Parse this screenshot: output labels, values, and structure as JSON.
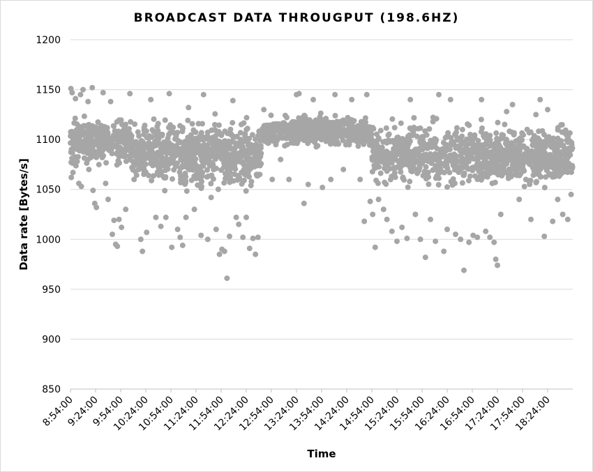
{
  "chart_data": {
    "type": "scatter",
    "title": "BROADCAST DATA THROUGPUT (198.6HZ)",
    "xlabel": "Time",
    "ylabel": "Data rate [Bytes/s]",
    "ylim": [
      850,
      1200
    ],
    "yticks": [
      850,
      900,
      950,
      1000,
      1050,
      1100,
      1150,
      1200
    ],
    "x_range": [
      "8:54:00",
      "18:54:00"
    ],
    "xtick_labels": [
      "8:54:00",
      "9:24:00",
      "9:54:00",
      "10:24:00",
      "10:54:00",
      "11:24:00",
      "11:54:00",
      "12:24:00",
      "12:54:00",
      "13:24:00",
      "13:54:00",
      "14:24:00",
      "14:54:00",
      "15:24:00",
      "15:54:00",
      "16:24:00",
      "16:54:00",
      "17:24:00",
      "17:54:00",
      "18:24:00"
    ],
    "grid": true,
    "legend": "none",
    "marker_color": "#a6a6a6",
    "series": [
      {
        "description_points_note": "",
        "points": [
          [
            "8:54:30",
            1151
          ],
          [
            "8:56:00",
            1147
          ],
          [
            "9:00:00",
            1141
          ],
          [
            "9:06:00",
            1145
          ],
          [
            "9:09:00",
            1150
          ],
          [
            "9:15:00",
            1138
          ],
          [
            "9:20:00",
            1152
          ],
          [
            "9:33:00",
            1147
          ],
          [
            "9:42:00",
            1138
          ],
          [
            "8:55:00",
            1062
          ],
          [
            "8:57:00",
            1067
          ],
          [
            "9:02:00",
            1078
          ],
          [
            "9:04:00",
            1056
          ],
          [
            "9:07:00",
            1053
          ],
          [
            "9:12:00",
            1088
          ],
          [
            "9:16:00",
            1070
          ],
          [
            "9:21:00",
            1049
          ],
          [
            "9:23:00",
            1036
          ],
          [
            "9:25:00",
            1032
          ],
          [
            "9:36:00",
            1056
          ],
          [
            "9:39:00",
            1040
          ],
          [
            "9:44:00",
            1005
          ],
          [
            "9:46:00",
            1019
          ],
          [
            "9:48:00",
            995
          ],
          [
            "9:50:00",
            993
          ],
          [
            "9:52:00",
            1020
          ],
          [
            "9:55:00",
            1012
          ],
          [
            "10:00:00",
            1030
          ],
          [
            "10:05:00",
            1146
          ],
          [
            "10:10:00",
            1060
          ],
          [
            "10:18:00",
            1000
          ],
          [
            "10:20:00",
            988
          ],
          [
            "10:25:00",
            1007
          ],
          [
            "10:30:00",
            1140
          ],
          [
            "10:36:00",
            1022
          ],
          [
            "10:42:00",
            1013
          ],
          [
            "10:48:00",
            1022
          ],
          [
            "10:52:00",
            1146
          ],
          [
            "10:55:00",
            992
          ],
          [
            "11:02:00",
            1010
          ],
          [
            "11:05:00",
            1002
          ],
          [
            "11:08:00",
            994
          ],
          [
            "11:12:00",
            1022
          ],
          [
            "11:15:00",
            1132
          ],
          [
            "11:22:00",
            1030
          ],
          [
            "11:30:00",
            1004
          ],
          [
            "11:33:00",
            1145
          ],
          [
            "11:38:00",
            1000
          ],
          [
            "11:42:00",
            1042
          ],
          [
            "11:48:00",
            1010
          ],
          [
            "11:52:00",
            985
          ],
          [
            "11:55:00",
            990
          ],
          [
            "11:58:00",
            988
          ],
          [
            "12:01:00",
            961
          ],
          [
            "12:04:00",
            1003
          ],
          [
            "12:08:00",
            1139
          ],
          [
            "12:12:00",
            1022
          ],
          [
            "12:15:00",
            1015
          ],
          [
            "12:20:00",
            1002
          ],
          [
            "12:24:00",
            1022
          ],
          [
            "12:28:00",
            991
          ],
          [
            "12:32:00",
            1001
          ],
          [
            "12:35:00",
            985
          ],
          [
            "12:38:00",
            1002
          ],
          [
            "12:45:00",
            1130
          ],
          [
            "12:55:00",
            1060
          ],
          [
            "13:05:00",
            1080
          ],
          [
            "13:15:00",
            1060
          ],
          [
            "13:24:00",
            1145
          ],
          [
            "13:27:00",
            1146
          ],
          [
            "13:33:00",
            1036
          ],
          [
            "13:38:00",
            1055
          ],
          [
            "13:44:00",
            1140
          ],
          [
            "13:55:00",
            1052
          ],
          [
            "14:05:00",
            1060
          ],
          [
            "14:10:00",
            1145
          ],
          [
            "14:20:00",
            1070
          ],
          [
            "14:30:00",
            1140
          ],
          [
            "14:40:00",
            1060
          ],
          [
            "14:45:00",
            1018
          ],
          [
            "14:48:00",
            1145
          ],
          [
            "14:52:00",
            1038
          ],
          [
            "14:55:00",
            1025
          ],
          [
            "14:58:00",
            992
          ],
          [
            "15:02:00",
            1040
          ],
          [
            "15:08:00",
            1030
          ],
          [
            "15:12:00",
            1020
          ],
          [
            "15:18:00",
            1008
          ],
          [
            "15:24:00",
            998
          ],
          [
            "15:30:00",
            1012
          ],
          [
            "15:36:00",
            1001
          ],
          [
            "15:40:00",
            1140
          ],
          [
            "15:46:00",
            1025
          ],
          [
            "15:52:00",
            1000
          ],
          [
            "15:58:00",
            982
          ],
          [
            "16:04:00",
            1020
          ],
          [
            "16:10:00",
            998
          ],
          [
            "16:14:00",
            1145
          ],
          [
            "16:20:00",
            988
          ],
          [
            "16:24:00",
            1010
          ],
          [
            "16:28:00",
            1140
          ],
          [
            "16:34:00",
            1005
          ],
          [
            "16:40:00",
            1000
          ],
          [
            "16:44:00",
            969
          ],
          [
            "16:50:00",
            997
          ],
          [
            "16:55:00",
            1004
          ],
          [
            "17:00:00",
            1002
          ],
          [
            "17:05:00",
            1140
          ],
          [
            "17:10:00",
            1008
          ],
          [
            "17:15:00",
            1002
          ],
          [
            "17:20:00",
            997
          ],
          [
            "17:22:00",
            980
          ],
          [
            "17:24:00",
            974
          ],
          [
            "17:28:00",
            1025
          ],
          [
            "17:35:00",
            1128
          ],
          [
            "17:42:00",
            1135
          ],
          [
            "17:50:00",
            1040
          ],
          [
            "17:58:00",
            1060
          ],
          [
            "18:04:00",
            1020
          ],
          [
            "18:10:00",
            1125
          ],
          [
            "18:15:00",
            1140
          ],
          [
            "18:20:00",
            1003
          ],
          [
            "18:24:00",
            1130
          ],
          [
            "18:30:00",
            1018
          ],
          [
            "18:36:00",
            1040
          ],
          [
            "18:42:00",
            1025
          ],
          [
            "18:48:00",
            1020
          ],
          [
            "18:52:00",
            1045
          ]
        ]
      }
    ]
  }
}
